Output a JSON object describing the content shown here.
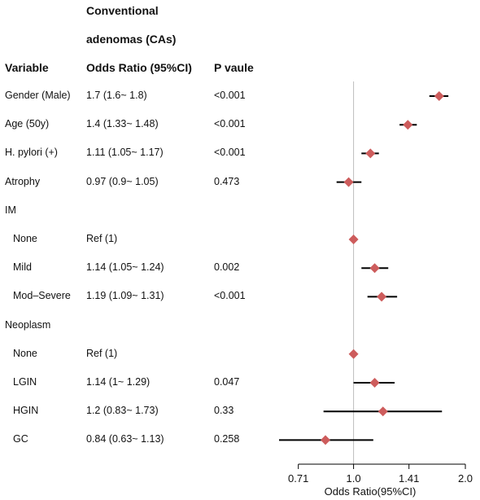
{
  "header": {
    "group_line1": "Conventional",
    "group_line2": "adenomas (CAs)",
    "variable": "Variable",
    "odds_ratio": "Odds Ratio (95%CI)",
    "p_value": "P vaule"
  },
  "chart_data": {
    "type": "forest",
    "xlabel": "Odds Ratio(95%CI)",
    "xscale": "log",
    "xlim": [
      0.59,
      2.0
    ],
    "xticks": [
      0.71,
      1.0,
      1.41,
      2.0
    ],
    "xtick_labels": [
      "0.71",
      "1.0",
      "1.41",
      "2.0"
    ],
    "reference_line": 1.0,
    "marker_color": "#cd5c5c",
    "rows": [
      {
        "label": "Gender (Male)",
        "indent": false,
        "or_text": "1.7 (1.6~ 1.8)",
        "p": "<0.001",
        "or": 1.7,
        "lo": 1.6,
        "hi": 1.8
      },
      {
        "label": "Age (50y)",
        "indent": false,
        "or_text": "1.4 (1.33~ 1.48)",
        "p": "<0.001",
        "or": 1.4,
        "lo": 1.33,
        "hi": 1.48
      },
      {
        "label": "H. pylori (+)",
        "indent": false,
        "or_text": "1.11 (1.05~ 1.17)",
        "p": "<0.001",
        "or": 1.11,
        "lo": 1.05,
        "hi": 1.17
      },
      {
        "label": "Atrophy",
        "indent": false,
        "or_text": "0.97 (0.9~ 1.05)",
        "p": "0.473",
        "or": 0.97,
        "lo": 0.9,
        "hi": 1.05
      },
      {
        "label": "IM",
        "indent": false,
        "or_text": "",
        "p": "",
        "or": null,
        "lo": null,
        "hi": null
      },
      {
        "label": "None",
        "indent": true,
        "or_text": "Ref (1)",
        "p": "",
        "or": 1.0,
        "lo": null,
        "hi": null
      },
      {
        "label": "Mild",
        "indent": true,
        "or_text": "1.14 (1.05~ 1.24)",
        "p": "0.002",
        "or": 1.14,
        "lo": 1.05,
        "hi": 1.24
      },
      {
        "label": "Mod–Severe",
        "indent": true,
        "or_text": "1.19 (1.09~ 1.31)",
        "p": "<0.001",
        "or": 1.19,
        "lo": 1.09,
        "hi": 1.31
      },
      {
        "label": "Neoplasm",
        "indent": false,
        "or_text": "",
        "p": "",
        "or": null,
        "lo": null,
        "hi": null
      },
      {
        "label": "None",
        "indent": true,
        "or_text": "Ref (1)",
        "p": "",
        "or": 1.0,
        "lo": null,
        "hi": null
      },
      {
        "label": "LGIN",
        "indent": true,
        "or_text": "1.14 (1~ 1.29)",
        "p": "0.047",
        "or": 1.14,
        "lo": 1.0,
        "hi": 1.29
      },
      {
        "label": "HGIN",
        "indent": true,
        "or_text": "1.2 (0.83~ 1.73)",
        "p": "0.33",
        "or": 1.2,
        "lo": 0.83,
        "hi": 1.73
      },
      {
        "label": "GC",
        "indent": true,
        "or_text": "0.84 (0.63~ 1.13)",
        "p": "0.258",
        "or": 0.84,
        "lo": 0.63,
        "hi": 1.13
      }
    ]
  }
}
